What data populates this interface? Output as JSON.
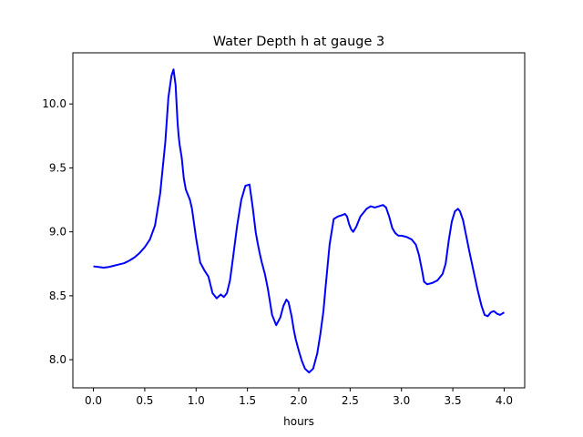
{
  "chart_data": {
    "type": "line",
    "title": "Water Depth h at gauge 3",
    "xlabel": "hours",
    "ylabel": "",
    "xlim": [
      -0.2,
      4.2
    ],
    "ylim": [
      7.78,
      10.4
    ],
    "xticks": [
      0.0,
      0.5,
      1.0,
      1.5,
      2.0,
      2.5,
      3.0,
      3.5,
      4.0
    ],
    "xtick_labels": [
      "0.0",
      "0.5",
      "1.0",
      "1.5",
      "2.0",
      "2.5",
      "3.0",
      "3.5",
      "4.0"
    ],
    "yticks": [
      8.0,
      8.5,
      9.0,
      9.5,
      10.0
    ],
    "ytick_labels": [
      "8.0",
      "8.5",
      "9.0",
      "9.5",
      "10.0"
    ],
    "grid": false,
    "series": [
      {
        "color": "#0000ff",
        "x": [
          0.0,
          0.05,
          0.1,
          0.15,
          0.2,
          0.25,
          0.3,
          0.35,
          0.4,
          0.45,
          0.5,
          0.55,
          0.6,
          0.65,
          0.7,
          0.73,
          0.76,
          0.78,
          0.8,
          0.81,
          0.82,
          0.83,
          0.84,
          0.86,
          0.88,
          0.9,
          0.92,
          0.94,
          0.96,
          1.0,
          1.04,
          1.08,
          1.12,
          1.16,
          1.2,
          1.24,
          1.27,
          1.3,
          1.33,
          1.36,
          1.4,
          1.44,
          1.48,
          1.52,
          1.55,
          1.58,
          1.6,
          1.62,
          1.64,
          1.67,
          1.7,
          1.74,
          1.78,
          1.82,
          1.85,
          1.88,
          1.9,
          1.93,
          1.95,
          1.97,
          2.0,
          2.03,
          2.06,
          2.1,
          2.14,
          2.18,
          2.21,
          2.24,
          2.26,
          2.28,
          2.3,
          2.34,
          2.38,
          2.42,
          2.45,
          2.47,
          2.49,
          2.51,
          2.53,
          2.56,
          2.58,
          2.6,
          2.63,
          2.66,
          2.7,
          2.74,
          2.78,
          2.82,
          2.85,
          2.88,
          2.91,
          2.94,
          2.97,
          3.0,
          3.05,
          3.1,
          3.14,
          3.17,
          3.2,
          3.22,
          3.25,
          3.3,
          3.35,
          3.4,
          3.43,
          3.46,
          3.49,
          3.52,
          3.55,
          3.57,
          3.6,
          3.63,
          3.66,
          3.7,
          3.74,
          3.78,
          3.81,
          3.84,
          3.87,
          3.9,
          3.93,
          3.96,
          4.0
        ],
        "y": [
          8.73,
          8.725,
          8.72,
          8.725,
          8.735,
          8.745,
          8.755,
          8.775,
          8.8,
          8.835,
          8.88,
          8.94,
          9.05,
          9.3,
          9.7,
          10.05,
          10.22,
          10.27,
          10.15,
          10.0,
          9.85,
          9.75,
          9.68,
          9.58,
          9.42,
          9.33,
          9.29,
          9.25,
          9.18,
          8.95,
          8.76,
          8.7,
          8.65,
          8.52,
          8.48,
          8.51,
          8.49,
          8.52,
          8.62,
          8.8,
          9.05,
          9.25,
          9.36,
          9.37,
          9.2,
          9.0,
          8.91,
          8.83,
          8.76,
          8.67,
          8.55,
          8.35,
          8.27,
          8.33,
          8.42,
          8.47,
          8.45,
          8.34,
          8.24,
          8.16,
          8.07,
          7.99,
          7.93,
          7.9,
          7.93,
          8.05,
          8.2,
          8.38,
          8.56,
          8.73,
          8.9,
          9.1,
          9.12,
          9.13,
          9.14,
          9.12,
          9.06,
          9.02,
          9.0,
          9.04,
          9.08,
          9.12,
          9.15,
          9.18,
          9.2,
          9.19,
          9.2,
          9.21,
          9.19,
          9.12,
          9.03,
          8.99,
          8.97,
          8.97,
          8.96,
          8.94,
          8.9,
          8.82,
          8.7,
          8.61,
          8.59,
          8.6,
          8.62,
          8.67,
          8.75,
          8.93,
          9.08,
          9.16,
          9.18,
          9.16,
          9.09,
          8.97,
          8.85,
          8.7,
          8.55,
          8.42,
          8.35,
          8.34,
          8.37,
          8.38,
          8.36,
          8.35,
          8.37
        ]
      }
    ]
  }
}
